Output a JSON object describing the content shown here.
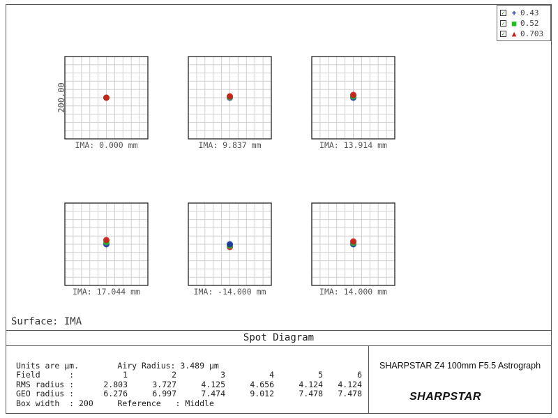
{
  "legend": {
    "items": [
      {
        "label": "0.43",
        "marker": "+",
        "color": "#1a2fa8"
      },
      {
        "label": "0.52",
        "marker": "■",
        "color": "#22c022"
      },
      {
        "label": "0.703",
        "marker": "▲",
        "color": "#d01818"
      }
    ]
  },
  "chart_data": {
    "type": "scatter",
    "title": "Spot Diagram",
    "box_width": 200,
    "y_axis_label": "200.00",
    "grid": true,
    "panels": [
      {
        "label": "IMA: 0.000 mm",
        "spots": [
          {
            "color": "#1a2fa8",
            "dx": 0,
            "dy": 0
          },
          {
            "color": "#22c022",
            "dx": 0,
            "dy": 0
          },
          {
            "color": "#d01818",
            "dx": 0,
            "dy": 0
          }
        ]
      },
      {
        "label": "IMA: 9.837 mm",
        "spots": [
          {
            "color": "#1a2fa8",
            "dx": 0,
            "dy": 0
          },
          {
            "color": "#22c022",
            "dx": 0,
            "dy": -1
          },
          {
            "color": "#d01818",
            "dx": 0,
            "dy": -2
          }
        ]
      },
      {
        "label": "IMA: 13.914 mm",
        "spots": [
          {
            "color": "#1a2fa8",
            "dx": 0,
            "dy": 0
          },
          {
            "color": "#22c022",
            "dx": 0,
            "dy": -2
          },
          {
            "color": "#d01818",
            "dx": 0,
            "dy": -4
          }
        ]
      },
      {
        "label": "IMA: 17.044 mm",
        "spots": [
          {
            "color": "#1a2fa8",
            "dx": 0,
            "dy": 0
          },
          {
            "color": "#22c022",
            "dx": 0,
            "dy": -3
          },
          {
            "color": "#d01818",
            "dx": 0,
            "dy": -6
          }
        ]
      },
      {
        "label": "IMA: -14.000 mm",
        "spots": [
          {
            "color": "#d01818",
            "dx": 0,
            "dy": 4
          },
          {
            "color": "#22c022",
            "dx": 0,
            "dy": 2
          },
          {
            "color": "#1a2fa8",
            "dx": 0,
            "dy": 0
          }
        ]
      },
      {
        "label": "IMA: 14.000 mm",
        "spots": [
          {
            "color": "#1a2fa8",
            "dx": 0,
            "dy": 0
          },
          {
            "color": "#22c022",
            "dx": 0,
            "dy": -2
          },
          {
            "color": "#d01818",
            "dx": 0,
            "dy": -4
          }
        ]
      }
    ]
  },
  "surface_label": "Surface: IMA",
  "title": "Spot Diagram",
  "info": {
    "units_line": "Units are µm.        Airy Radius: 3.489 µm",
    "field_label": "Field      :",
    "rms_label": "RMS radius :",
    "geo_label": "GEO radius :",
    "fields": [
      "1",
      "2",
      "3",
      "4",
      "5",
      "6"
    ],
    "rms": [
      "2.803",
      "3.727",
      "4.125",
      "4.656",
      "4.124",
      "4.124"
    ],
    "geo": [
      "6.276",
      "6.997",
      "7.474",
      "9.012",
      "7.478",
      "7.478"
    ],
    "boxwidth_line": "Box width  : 200     Reference   : Middle"
  },
  "system": {
    "title": "SHARPSTAR Z4 100mm F5.5 Astrograph",
    "logo": "SHARPSTAR"
  }
}
